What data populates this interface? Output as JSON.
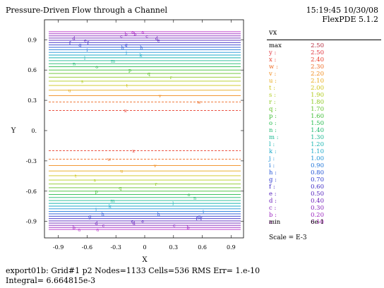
{
  "header": {
    "title": "Pressure-Driven Flow through a Channel",
    "timestamp": "15:19:45 10/30/08",
    "software": "FlexPDE 5.1.2"
  },
  "legend": {
    "variable": "vx",
    "max_label": "max",
    "max_value": "2.50",
    "min_label": "min",
    "min_value": "6e-1",
    "scale": "Scale = E-3",
    "entries": [
      {
        "key": "y :",
        "value": "2.50",
        "color": "#e0303a"
      },
      {
        "key": "x :",
        "value": "2.40",
        "color": "#e83b2a"
      },
      {
        "key": "w :",
        "value": "2.30",
        "color": "#ee6a22"
      },
      {
        "key": "v :",
        "value": "2.20",
        "color": "#f08a1a"
      },
      {
        "key": "u :",
        "value": "2.10",
        "color": "#e8a817"
      },
      {
        "key": "t :",
        "value": "2.00",
        "color": "#cfc419"
      },
      {
        "key": "s :",
        "value": "1.90",
        "color": "#b0cc1c"
      },
      {
        "key": "r :",
        "value": "1.80",
        "color": "#8cc820"
      },
      {
        "key": "q :",
        "value": "1.70",
        "color": "#62c22a"
      },
      {
        "key": "p :",
        "value": "1.60",
        "color": "#3cbd33"
      },
      {
        "key": "o :",
        "value": "1.50",
        "color": "#22b94a"
      },
      {
        "key": "n :",
        "value": "1.40",
        "color": "#1db96e"
      },
      {
        "key": "m :",
        "value": "1.30",
        "color": "#1bb891"
      },
      {
        "key": "l :",
        "value": "1.20",
        "color": "#19b5b1"
      },
      {
        "key": "k :",
        "value": "1.10",
        "color": "#1aa9c8"
      },
      {
        "key": "j :",
        "value": "1.00",
        "color": "#1a92d6"
      },
      {
        "key": "i :",
        "value": "0.90",
        "color": "#1c74d9"
      },
      {
        "key": "h :",
        "value": "0.80",
        "color": "#2153d6"
      },
      {
        "key": "g :",
        "value": "0.70",
        "color": "#2a37cf"
      },
      {
        "key": "f :",
        "value": "0.60",
        "color": "#3a27c4"
      },
      {
        "key": "e :",
        "value": "0.50",
        "color": "#5320bd"
      },
      {
        "key": "d :",
        "value": "0.40",
        "color": "#6b1fb9"
      },
      {
        "key": "c :",
        "value": "0.30",
        "color": "#8320bb"
      },
      {
        "key": "b :",
        "value": "0.20",
        "color": "#9b23bf"
      },
      {
        "key": "a :",
        "value": "0.10",
        "color": "#b428c6"
      }
    ]
  },
  "footer": {
    "line1": "export01b:  Grid#1  p2  Nodes=1133 Cells=536 RMS Err= 1.e-10",
    "line2": "Integral=  6.664815e-3"
  },
  "chart_data": {
    "type": "contour",
    "title": "Pressure-Driven Flow through a Channel",
    "variable": "vx",
    "xlabel": "X",
    "ylabel": "Y",
    "xlim": [
      -1.05,
      1.05
    ],
    "ylim": [
      -1.05,
      1.05
    ],
    "xticks": [
      -0.9,
      -0.6,
      -0.3,
      0,
      0.3,
      0.6,
      0.9
    ],
    "xtick_labels": [
      "-0.9",
      "-0.6",
      "-0.3",
      "0",
      "0.3",
      "0.6",
      "0.9"
    ],
    "yticks": [
      0.9,
      0.6,
      0.3,
      0,
      -0.3,
      -0.6,
      -0.9
    ],
    "ytick_labels": [
      "0.9",
      "0.6",
      "0.3",
      "0.",
      "-0.3",
      "-0.6",
      "-0.9"
    ],
    "contour_levels": [
      0.1,
      0.2,
      0.3,
      0.4,
      0.5,
      0.6,
      0.7,
      0.8,
      0.9,
      1.0,
      1.1,
      1.2,
      1.3,
      1.4,
      1.5,
      1.6,
      1.7,
      1.8,
      1.9,
      2.0,
      2.1,
      2.2,
      2.3,
      2.4,
      2.5
    ],
    "scale": "E-3",
    "max": 2.5,
    "min": 0.6
  }
}
